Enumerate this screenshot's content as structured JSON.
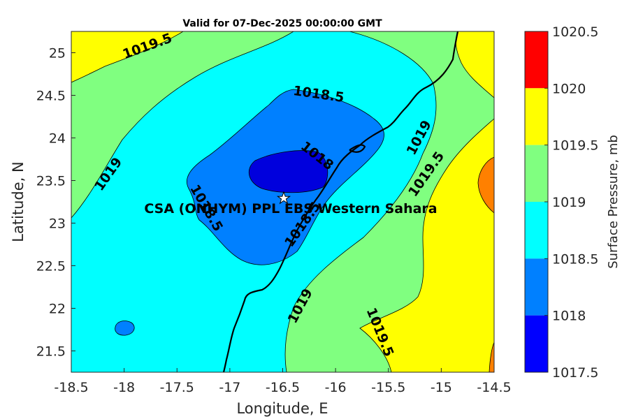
{
  "chart_data": {
    "type": "contour",
    "title": "Valid for 07-Dec-2025 00:00:00 GMT",
    "xlabel": "Longitude, E",
    "ylabel": "Latitude, N",
    "xlim": [
      -18.5,
      -14.5
    ],
    "ylim": [
      21.25,
      25.25
    ],
    "x_ticks": [
      "-18.5",
      "-18",
      "-17.5",
      "-17",
      "-16.5",
      "-16",
      "-15.5",
      "-15",
      "-14.5"
    ],
    "y_ticks": [
      "25",
      "24.5",
      "24",
      "23.5",
      "23",
      "22.5",
      "22",
      "21.5"
    ],
    "colorbar": {
      "title": "Surface Pressure, mb",
      "levels": [
        "1020.5",
        "1020",
        "1019.5",
        "1019",
        "1018.5",
        "1018",
        "1017.5"
      ],
      "colors": [
        "#ff0000",
        "#ff8000",
        "#ffff00",
        "#80ff80",
        "#00ffff",
        "#0080ff",
        "#0000ff"
      ]
    },
    "contour_labels": [
      "1019.5",
      "1018.5",
      "1018",
      "1019",
      "1019",
      "1019.5",
      "1018.5",
      "1018.5",
      "1019",
      "1019.5"
    ],
    "station": {
      "label": "CSA (ONHYM) PPL EBS Western Sahara",
      "lon": -16.5,
      "lat": 23.3
    },
    "grid": false
  }
}
